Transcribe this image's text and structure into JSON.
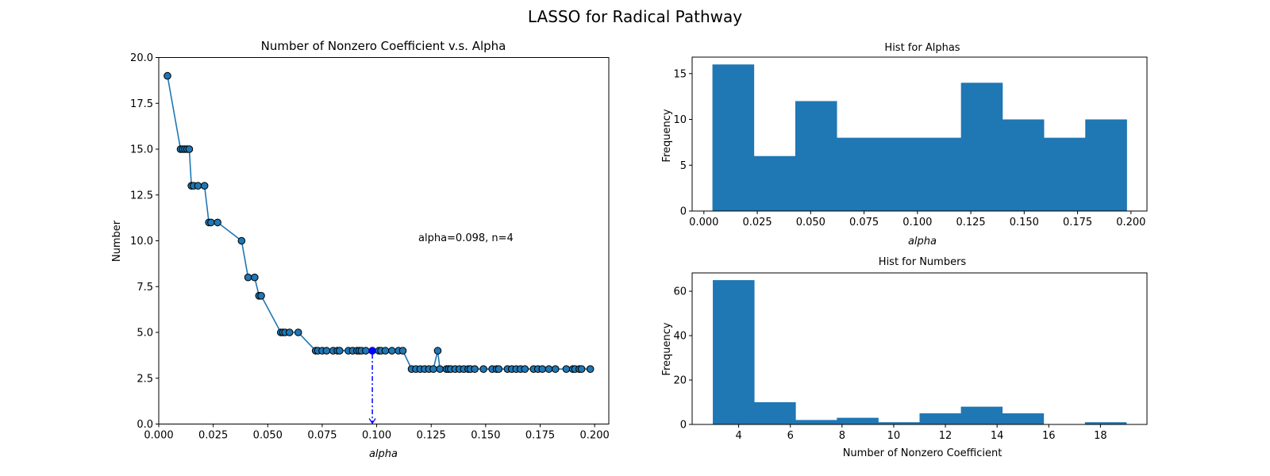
{
  "suptitle": "LASSO for Radical Pathway",
  "chart_data": [
    {
      "type": "line",
      "title": "Number of Nonzero Coefficient v.s. Alpha",
      "xlabel": "alpha",
      "ylabel": "Number",
      "xlim": [
        0.0,
        0.2065
      ],
      "ylim": [
        0.0,
        20.0
      ],
      "xticks": [
        "0.000",
        "0.025",
        "0.050",
        "0.075",
        "0.100",
        "0.125",
        "0.150",
        "0.175",
        "0.200"
      ],
      "yticks": [
        "0.0",
        "2.5",
        "5.0",
        "7.5",
        "10.0",
        "12.5",
        "15.0",
        "17.5",
        "20.0"
      ],
      "annotation": "alpha=0.098, n=4",
      "selected_point": {
        "x": 0.098,
        "y": 4
      },
      "series": [
        {
          "x": [
            0.004,
            0.01,
            0.011,
            0.012,
            0.013,
            0.014,
            0.015,
            0.016,
            0.018,
            0.021,
            0.023,
            0.024,
            0.027,
            0.038,
            0.041,
            0.044,
            0.046,
            0.047,
            0.056,
            0.057,
            0.058,
            0.06,
            0.064,
            0.072,
            0.073,
            0.075,
            0.077,
            0.08,
            0.082,
            0.083,
            0.087,
            0.089,
            0.091,
            0.092,
            0.093,
            0.095,
            0.098,
            0.101,
            0.102,
            0.104,
            0.107,
            0.11,
            0.112,
            0.116,
            0.118,
            0.12,
            0.122,
            0.124,
            0.126,
            0.128,
            0.129,
            0.132,
            0.133,
            0.134,
            0.136,
            0.138,
            0.14,
            0.142,
            0.143,
            0.145,
            0.149,
            0.153,
            0.155,
            0.156,
            0.16,
            0.162,
            0.164,
            0.166,
            0.168,
            0.172,
            0.174,
            0.176,
            0.179,
            0.182,
            0.187,
            0.19,
            0.191,
            0.193,
            0.194,
            0.198
          ],
          "y": [
            19,
            15,
            15,
            15,
            15,
            15,
            13,
            13,
            13,
            13,
            11,
            11,
            11,
            10,
            8,
            8,
            7,
            7,
            5,
            5,
            5,
            5,
            5,
            4,
            4,
            4,
            4,
            4,
            4,
            4,
            4,
            4,
            4,
            4,
            4,
            4,
            4,
            4,
            4,
            4,
            4,
            4,
            4,
            3,
            3,
            3,
            3,
            3,
            3,
            4,
            3,
            3,
            3,
            3,
            3,
            3,
            3,
            3,
            3,
            3,
            3,
            3,
            3,
            3,
            3,
            3,
            3,
            3,
            3,
            3,
            3,
            3,
            3,
            3,
            3,
            3,
            3,
            3,
            3,
            3
          ]
        }
      ]
    },
    {
      "type": "bar",
      "title": "Hist for Alphas",
      "xlabel": "alpha",
      "ylabel": "Frequency",
      "xlim": [
        -0.0055,
        0.2075
      ],
      "ylim": [
        0,
        16.8
      ],
      "xticks": [
        "0.000",
        "0.025",
        "0.050",
        "0.075",
        "0.100",
        "0.125",
        "0.150",
        "0.175",
        "0.200"
      ],
      "yticks": [
        "0",
        "5",
        "10",
        "15"
      ],
      "bin_edges": [
        0.004,
        0.0234,
        0.0428,
        0.0622,
        0.0816,
        0.101,
        0.1204,
        0.1398,
        0.1592,
        0.1786,
        0.198
      ],
      "values": [
        16,
        6,
        12,
        8,
        8,
        8,
        14,
        10,
        8,
        10
      ]
    },
    {
      "type": "bar",
      "title": "Hist for Numbers",
      "xlabel": "Number of Nonzero Coefficient",
      "ylabel": "Frequency",
      "xlim": [
        2.2,
        19.8
      ],
      "ylim": [
        0,
        68.25
      ],
      "xticks": [
        "4",
        "6",
        "8",
        "10",
        "12",
        "14",
        "16",
        "18"
      ],
      "yticks": [
        "0",
        "20",
        "40",
        "60"
      ],
      "bin_edges": [
        3.0,
        4.6,
        6.2,
        7.8,
        9.4,
        11.0,
        12.6,
        14.2,
        15.8,
        17.4,
        19.0
      ],
      "values": [
        65,
        10,
        2,
        3,
        1,
        5,
        8,
        5,
        0,
        1
      ]
    }
  ],
  "colors": {
    "bar": "#1f77b4",
    "line": "#1f77b4",
    "marker_edge": "#000000",
    "highlight": "#0000ff"
  }
}
